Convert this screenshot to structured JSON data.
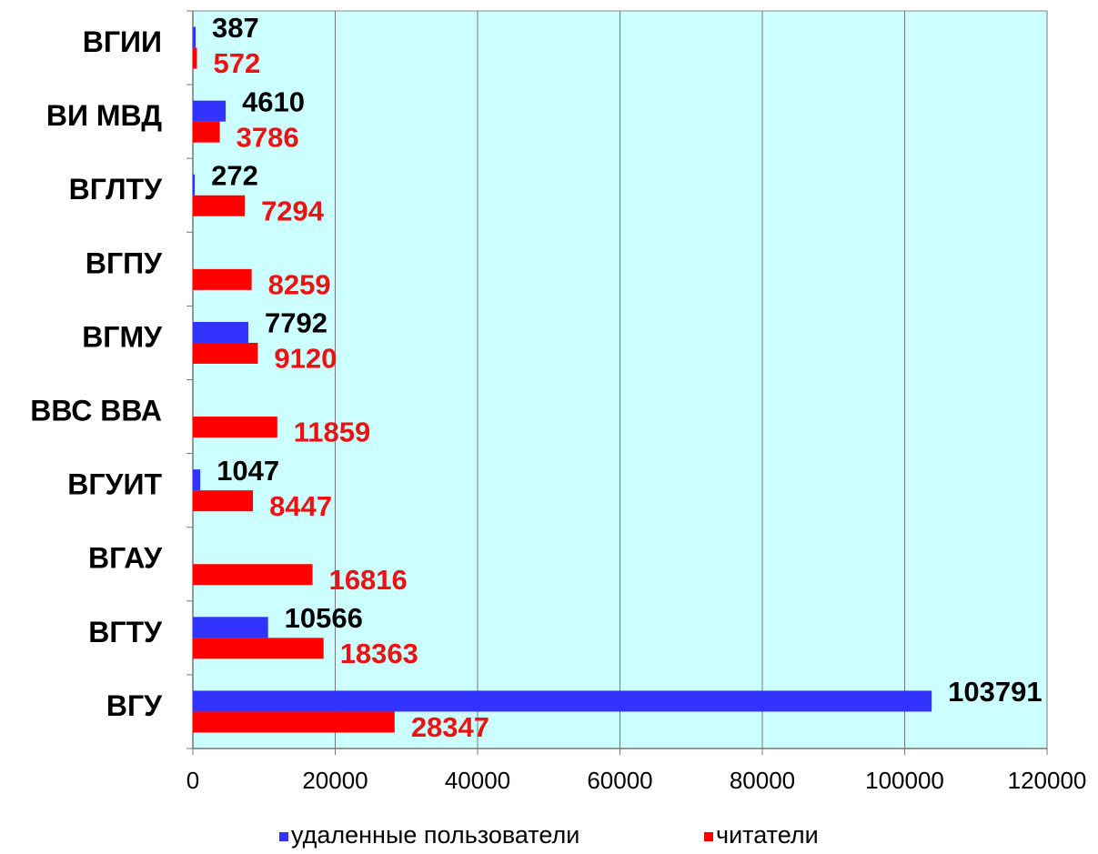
{
  "chart_data": {
    "type": "bar",
    "orientation": "horizontal",
    "categories": [
      "ВГИИ",
      "ВИ МВД",
      "ВГЛТУ",
      "ВГПУ",
      "ВГМУ",
      "ВВС ВВА",
      "ВГУИТ",
      "ВГАУ",
      "ВГТУ",
      "ВГУ"
    ],
    "series": [
      {
        "name": "удаленные пользователи",
        "color": "#3333ff",
        "label_color": "#000000",
        "values": [
          387,
          4610,
          272,
          null,
          7792,
          null,
          1047,
          null,
          10566,
          103791
        ]
      },
      {
        "name": "читатели",
        "color": "#ff0000",
        "label_color": "#ee1111",
        "values": [
          572,
          3786,
          7294,
          8259,
          9120,
          11859,
          8447,
          16816,
          18363,
          28347
        ]
      }
    ],
    "xlim": [
      0,
      120000
    ],
    "xticks": [
      0,
      20000,
      40000,
      60000,
      80000,
      100000,
      120000
    ],
    "grid": true,
    "plot_background": "#ccffff",
    "legend": "bottom"
  }
}
